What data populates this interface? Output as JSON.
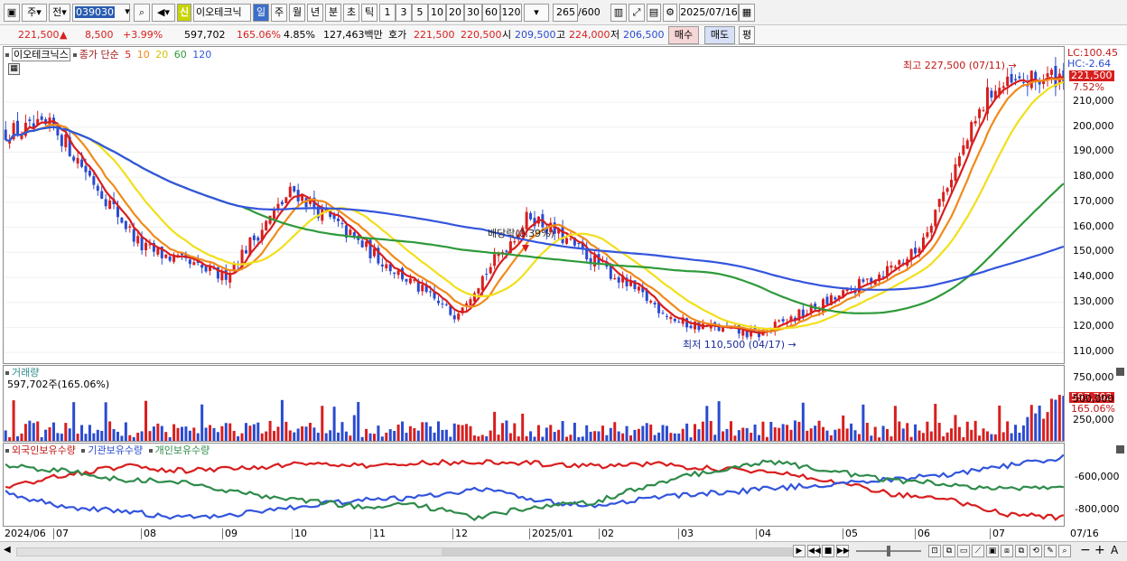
{
  "toolbar": {
    "period_type": "주",
    "market": "전",
    "code": "039030",
    "stock_name": "이오테크닉",
    "tab_day": "일",
    "tab_week": "주",
    "tab_month": "월",
    "tab_year": "년",
    "tab_min": "분",
    "tab_tick_sec": "초",
    "tab_tick": "틱",
    "intervals": [
      "1",
      "3",
      "5",
      "10",
      "20",
      "30",
      "60",
      "120"
    ],
    "view_count": "265",
    "view_total": "/600",
    "date": "2025/07/16",
    "new_badge": "신"
  },
  "quote": {
    "price": "221,500",
    "change": "8,500",
    "change_pct": "+3.99%",
    "volume": "597,702",
    "vol_ratio": "165.06%",
    "turnover": "4.85%",
    "amount": "127,463백만",
    "hoga_label": "호가",
    "ask": "221,500",
    "bid": "220,500",
    "open_label": "시",
    "open": "209,500",
    "high_label": "고",
    "high": "224,000",
    "low_label": "저",
    "low": "206,500",
    "buy_label": "매수",
    "sell_label": "매도",
    "eval_label": "평"
  },
  "price_panel": {
    "legend_name": "이오테크닉스",
    "legend_ma_label": "종가 단순",
    "ma_periods": [
      "5",
      "10",
      "20",
      "60",
      "120"
    ],
    "ma_colors": [
      "#d81e1e",
      "#f08a1a",
      "#f2df1a",
      "#2e9a3a",
      "#3355dd"
    ],
    "lc": "LC:100.45",
    "hc": "HC:-2.64",
    "cur_price": "221,500",
    "cur_pct": "7.52%",
    "high_note": "최고 227,500 (07/11)",
    "low_note": "최저 110,500 (04/17)",
    "dividend_note": "배당락(0.39%)",
    "y_ticks": [
      "210,000",
      "200,000",
      "190,000",
      "180,000",
      "170,000",
      "160,000",
      "150,000",
      "140,000",
      "130,000",
      "120,000",
      "110,000"
    ]
  },
  "volume_panel": {
    "title": "거래량",
    "current": "597,702주(165.06%)",
    "cur_label": "597,702",
    "cur_pct": "165.06%",
    "y_ticks": [
      "750,000",
      "500,000",
      "250,000"
    ]
  },
  "holding_panel": {
    "legend": [
      "외국인보유수량",
      "기관보유수량",
      "개인보유수량"
    ],
    "colors": [
      "#d81e1e",
      "#3355dd",
      "#2e8b4a"
    ],
    "y_ticks": [
      "-600,000",
      "-800,000"
    ]
  },
  "x_axis": [
    "2024/06",
    "07",
    "08",
    "09",
    "10",
    "11",
    "12",
    "2025/01",
    "02",
    "03",
    "04",
    "05",
    "06",
    "07",
    "07/16"
  ],
  "chart_data": [
    {
      "type": "candlestick",
      "title": "이오테크닉스",
      "series": [
        {
          "name": "5",
          "description": "종가 단순 이동평균"
        },
        {
          "name": "10"
        },
        {
          "name": "20"
        },
        {
          "name": "60"
        },
        {
          "name": "120"
        }
      ],
      "ylim": [
        105000,
        232000
      ],
      "approx_close": [
        {
          "x": "2024/06",
          "y": 198000
        },
        {
          "x": "07",
          "y": 200000
        },
        {
          "x": "08",
          "y": 152000
        },
        {
          "x": "09",
          "y": 140000
        },
        {
          "x": "10",
          "y": 175000
        },
        {
          "x": "11",
          "y": 150000
        },
        {
          "x": "12",
          "y": 125000
        },
        {
          "x": "2025/01",
          "y": 165000
        },
        {
          "x": "02",
          "y": 145000
        },
        {
          "x": "03",
          "y": 122000
        },
        {
          "x": "04",
          "y": 117000
        },
        {
          "x": "05",
          "y": 133000
        },
        {
          "x": "06",
          "y": 150000
        },
        {
          "x": "07",
          "y": 215000
        },
        {
          "x": "07/16",
          "y": 221500
        }
      ],
      "annotations": [
        "최고 227,500 (07/11)",
        "최저 110,500 (04/17)",
        "배당락(0.39%)"
      ]
    },
    {
      "type": "bar",
      "title": "거래량",
      "ylim": [
        0,
        900000
      ],
      "last_value": 597702
    },
    {
      "type": "line",
      "title": "보유수량",
      "series": [
        {
          "name": "외국인보유수량"
        },
        {
          "name": "기관보유수량"
        },
        {
          "name": "개인보유수량"
        }
      ]
    }
  ]
}
